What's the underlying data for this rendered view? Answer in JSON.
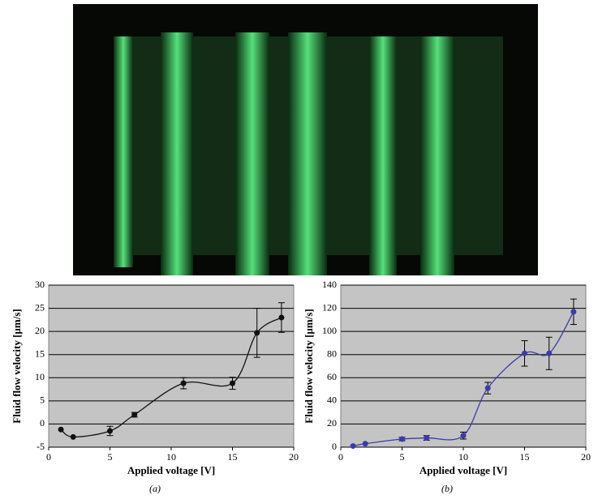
{
  "chart_data": [
    {
      "type": "line",
      "x_label": "Applied voltage [V]",
      "y_label": "Fluid flow velocity [µm/s]",
      "caption": "(a)",
      "x": [
        1,
        2,
        5,
        7,
        11,
        15,
        17,
        19
      ],
      "values": [
        -1.2,
        -2.8,
        -1.5,
        2,
        8.8,
        8.8,
        19.7,
        23
      ],
      "errors": [
        null,
        null,
        1,
        0.5,
        1.2,
        1.3,
        5.3,
        3.2
      ],
      "color": "#111111",
      "xlim": [
        0,
        20
      ],
      "xticks": [
        0,
        5,
        10,
        15,
        20
      ],
      "ylim": [
        -5,
        30
      ],
      "yticks": [
        -5,
        0,
        5,
        10,
        15,
        20,
        25,
        30
      ],
      "grid": true
    },
    {
      "type": "line",
      "x_label": "Applied voltage [V]",
      "y_label": "Fluid flow velocity [µm/s]",
      "caption": "(b)",
      "x": [
        1,
        2,
        5,
        7,
        10,
        12,
        15,
        17,
        19
      ],
      "values": [
        1,
        3,
        7,
        8,
        10,
        51,
        81,
        81,
        117
      ],
      "errors": [
        null,
        null,
        1.5,
        2,
        3,
        5,
        11,
        14,
        11
      ],
      "color": "#3b3ba8",
      "xlim": [
        0,
        20
      ],
      "xticks": [
        0,
        5,
        10,
        15,
        20
      ],
      "ylim": [
        0,
        140
      ],
      "yticks": [
        0,
        20,
        40,
        60,
        80,
        100,
        120,
        140
      ],
      "grid": true
    }
  ]
}
